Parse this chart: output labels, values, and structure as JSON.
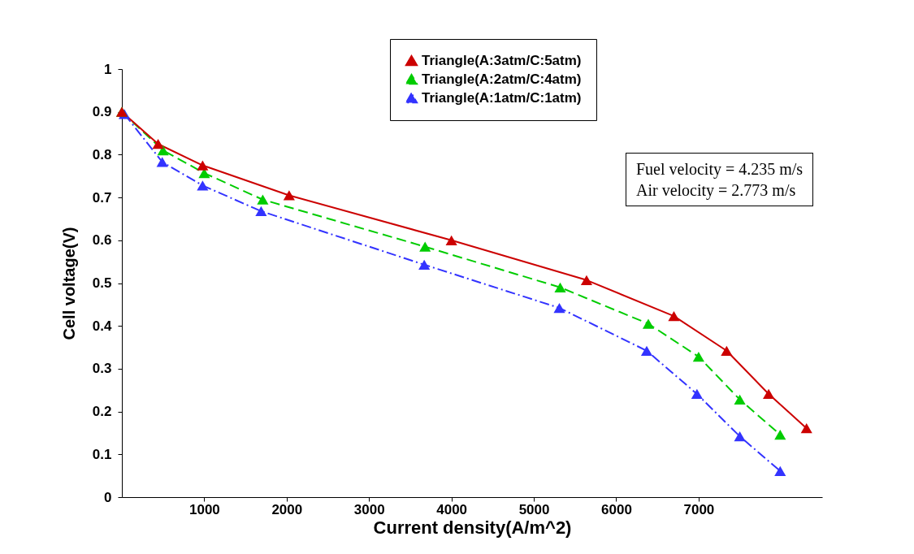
{
  "chart_data": {
    "type": "line",
    "xlabel": "Current density(A/m^2)",
    "ylabel": "Cell voltage(V)",
    "xlim": [
      0,
      8500
    ],
    "xticks": [
      1000,
      2000,
      3000,
      4000,
      5000,
      6000,
      7000
    ],
    "ylim": [
      0,
      1
    ],
    "yticks": [
      0,
      0.1,
      0.2,
      0.3,
      0.4,
      0.5,
      0.6,
      0.7,
      0.8,
      0.9,
      1
    ],
    "grid": false,
    "legend": "top right",
    "marker": "triangle",
    "annotations": [
      "Fuel velocity = 4.235 m/s",
      "Air velocity = 2.773 m/s"
    ],
    "series": [
      {
        "name": "Triangle(A:3atm/C:5atm)",
        "color": "#cc0000",
        "line_style": "solid",
        "x": [
          0,
          440,
          980,
          2030,
          4000,
          5640,
          6700,
          7340,
          7850,
          8310
        ],
        "values": [
          0.9,
          0.825,
          0.775,
          0.705,
          0.6,
          0.507,
          0.423,
          0.342,
          0.241,
          0.161
        ]
      },
      {
        "name": "Triangle(A:2atm/C:4atm)",
        "color": "#00cc00",
        "line_style": "dashed",
        "x": [
          0,
          500,
          1000,
          1710,
          3680,
          5320,
          6390,
          7000,
          7500,
          7990
        ],
        "values": [
          0.9,
          0.81,
          0.757,
          0.695,
          0.585,
          0.49,
          0.405,
          0.328,
          0.228,
          0.146
        ]
      },
      {
        "name": "Triangle(A:1atm/C:1atm)",
        "color": "#3333ff",
        "line_style": "dashdot",
        "x": [
          30,
          490,
          980,
          1690,
          3670,
          5310,
          6370,
          6980,
          7500,
          7990
        ],
        "values": [
          0.895,
          0.783,
          0.728,
          0.668,
          0.543,
          0.442,
          0.342,
          0.241,
          0.142,
          0.061
        ]
      }
    ]
  }
}
